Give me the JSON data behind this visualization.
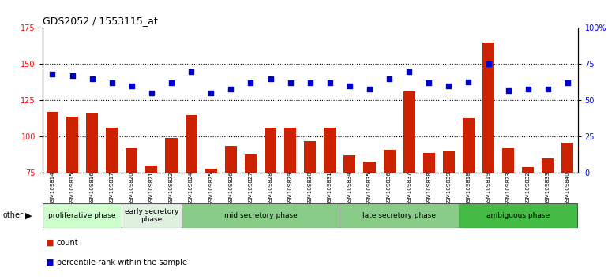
{
  "title": "GDS2052 / 1553115_at",
  "samples": [
    "GSM109814",
    "GSM109815",
    "GSM109816",
    "GSM109817",
    "GSM109820",
    "GSM109821",
    "GSM109822",
    "GSM109824",
    "GSM109825",
    "GSM109826",
    "GSM109827",
    "GSM109828",
    "GSM109829",
    "GSM109830",
    "GSM109831",
    "GSM109834",
    "GSM109835",
    "GSM109836",
    "GSM109837",
    "GSM109838",
    "GSM109839",
    "GSM109818",
    "GSM109819",
    "GSM109823",
    "GSM109832",
    "GSM109833",
    "GSM109840"
  ],
  "counts": [
    117,
    114,
    116,
    106,
    92,
    80,
    99,
    115,
    78,
    94,
    88,
    106,
    106,
    97,
    106,
    87,
    83,
    91,
    131,
    89,
    90,
    113,
    165,
    92,
    79,
    85,
    96
  ],
  "percentiles": [
    68,
    67,
    65,
    62,
    60,
    55,
    62,
    70,
    55,
    58,
    62,
    65,
    62,
    62,
    62,
    60,
    58,
    65,
    70,
    62,
    60,
    63,
    75,
    57,
    58,
    58,
    62
  ],
  "phases": [
    {
      "label": "proliferative phase",
      "start": 0,
      "end": 4,
      "color": "#ccffcc"
    },
    {
      "label": "early secretory\nphase",
      "start": 4,
      "end": 7,
      "color": "#dff0df"
    },
    {
      "label": "mid secretory phase",
      "start": 7,
      "end": 15,
      "color": "#88cc88"
    },
    {
      "label": "late secretory phase",
      "start": 15,
      "end": 21,
      "color": "#88cc88"
    },
    {
      "label": "ambiguous phase",
      "start": 21,
      "end": 27,
      "color": "#44bb44"
    }
  ],
  "ylim_left": [
    75,
    175
  ],
  "ylim_right": [
    0,
    100
  ],
  "yticks_left": [
    75,
    100,
    125,
    150,
    175
  ],
  "yticks_right": [
    0,
    25,
    50,
    75,
    100
  ],
  "ytick_labels_right": [
    "0",
    "25",
    "50",
    "75",
    "100%"
  ],
  "bar_color": "#cc2200",
  "dot_color": "#0000cc",
  "bg_color": "#ffffff"
}
